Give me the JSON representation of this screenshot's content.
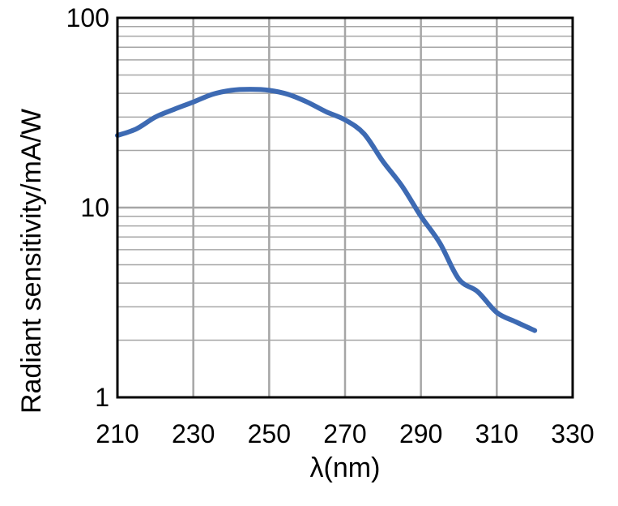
{
  "chart_data": {
    "type": "line",
    "title": "",
    "xlabel": "λ(nm)",
    "ylabel": "Radiant sensitivity/mA/W",
    "xlim": [
      210,
      330
    ],
    "ylim": [
      1,
      100
    ],
    "yscale": "log",
    "grid": true,
    "legend": "none",
    "x_ticks": [
      "210",
      "230",
      "250",
      "270",
      "290",
      "310",
      "330"
    ],
    "y_ticks": [
      "1",
      "10",
      "100"
    ],
    "colors": {
      "line": "#3d6ab3",
      "grid": "#a6a6a6",
      "axis": "#000000"
    },
    "series": [
      {
        "x": [
          210,
          215,
          220,
          225,
          230,
          235,
          240,
          245,
          250,
          255,
          260,
          265,
          270,
          275,
          280,
          285,
          290,
          295,
          300,
          305,
          310,
          315,
          320
        ],
        "values": [
          24,
          26,
          30,
          33,
          36,
          39.5,
          41.5,
          42,
          41.5,
          39.5,
          36,
          32,
          29,
          24.5,
          17.5,
          13,
          9,
          6.5,
          4.2,
          3.6,
          2.8,
          2.5,
          2.25
        ]
      }
    ]
  }
}
